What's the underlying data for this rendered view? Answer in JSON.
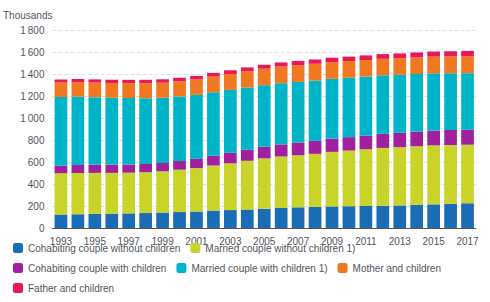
{
  "chart_data": {
    "type": "bar",
    "stacked": true,
    "ylabel": "Thousands",
    "categories": [
      "1993",
      null,
      "1995",
      null,
      "1997",
      null,
      "1999",
      null,
      "2001",
      null,
      "2003",
      null,
      "2005",
      null,
      "2007",
      null,
      "2009",
      null,
      "2011",
      null,
      "2013",
      null,
      "2015",
      null,
      "2017"
    ],
    "series": [
      {
        "name": "Cohabiting couple without children",
        "color": "#1a6cb5",
        "values": [
          122,
          126,
          128,
          130,
          133,
          136,
          140,
          145,
          150,
          158,
          163,
          168,
          175,
          182,
          188,
          192,
          196,
          198,
          200,
          202,
          205,
          210,
          215,
          220,
          225
        ]
      },
      {
        "name": "Married couple without children 1)",
        "color": "#c8d42a",
        "values": [
          375,
          375,
          373,
          371,
          370,
          371,
          375,
          385,
          395,
          410,
          425,
          443,
          458,
          468,
          473,
          482,
          496,
          506,
          516,
          526,
          530,
          533,
          536,
          534,
          532
        ]
      },
      {
        "name": "Cohabiting couple with children",
        "color": "#a020a0",
        "values": [
          70,
          72,
          73,
          73,
          74,
          75,
          77,
          80,
          85,
          90,
          95,
          100,
          105,
          110,
          115,
          118,
          120,
          122,
          125,
          128,
          130,
          133,
          135,
          137,
          138
        ]
      },
      {
        "name": "Married couple with children 1)",
        "color": "#00b4c8",
        "values": [
          625,
          620,
          615,
          610,
          605,
          598,
          592,
          586,
          580,
          576,
          572,
          566,
          560,
          556,
          552,
          548,
          544,
          540,
          536,
          532,
          528,
          524,
          520,
          516,
          512
        ]
      },
      {
        "name": "Mother and children",
        "color": "#f07820",
        "values": [
          130,
          132,
          133,
          134,
          135,
          136,
          137,
          138,
          140,
          143,
          145,
          148,
          150,
          152,
          153,
          153,
          152,
          151,
          150,
          150,
          150,
          151,
          152,
          153,
          155
        ]
      },
      {
        "name": "Father and children",
        "color": "#e8185a",
        "values": [
          28,
          29,
          29,
          30,
          30,
          31,
          31,
          32,
          33,
          33,
          34,
          35,
          36,
          37,
          38,
          39,
          40,
          41,
          42,
          43,
          44,
          45,
          46,
          47,
          48
        ]
      }
    ],
    "ylim": [
      0,
      1800
    ],
    "yticks": [
      0,
      200,
      400,
      600,
      800,
      {
        "value": 1000,
        "label": "1 000"
      },
      {
        "value": 1200,
        "label": "1 200"
      },
      {
        "value": 1400,
        "label": "1 400"
      },
      {
        "value": 1600,
        "label": "1 600"
      },
      {
        "value": 1800,
        "label": "1 800"
      }
    ],
    "grid": true,
    "legend": "bottom"
  }
}
